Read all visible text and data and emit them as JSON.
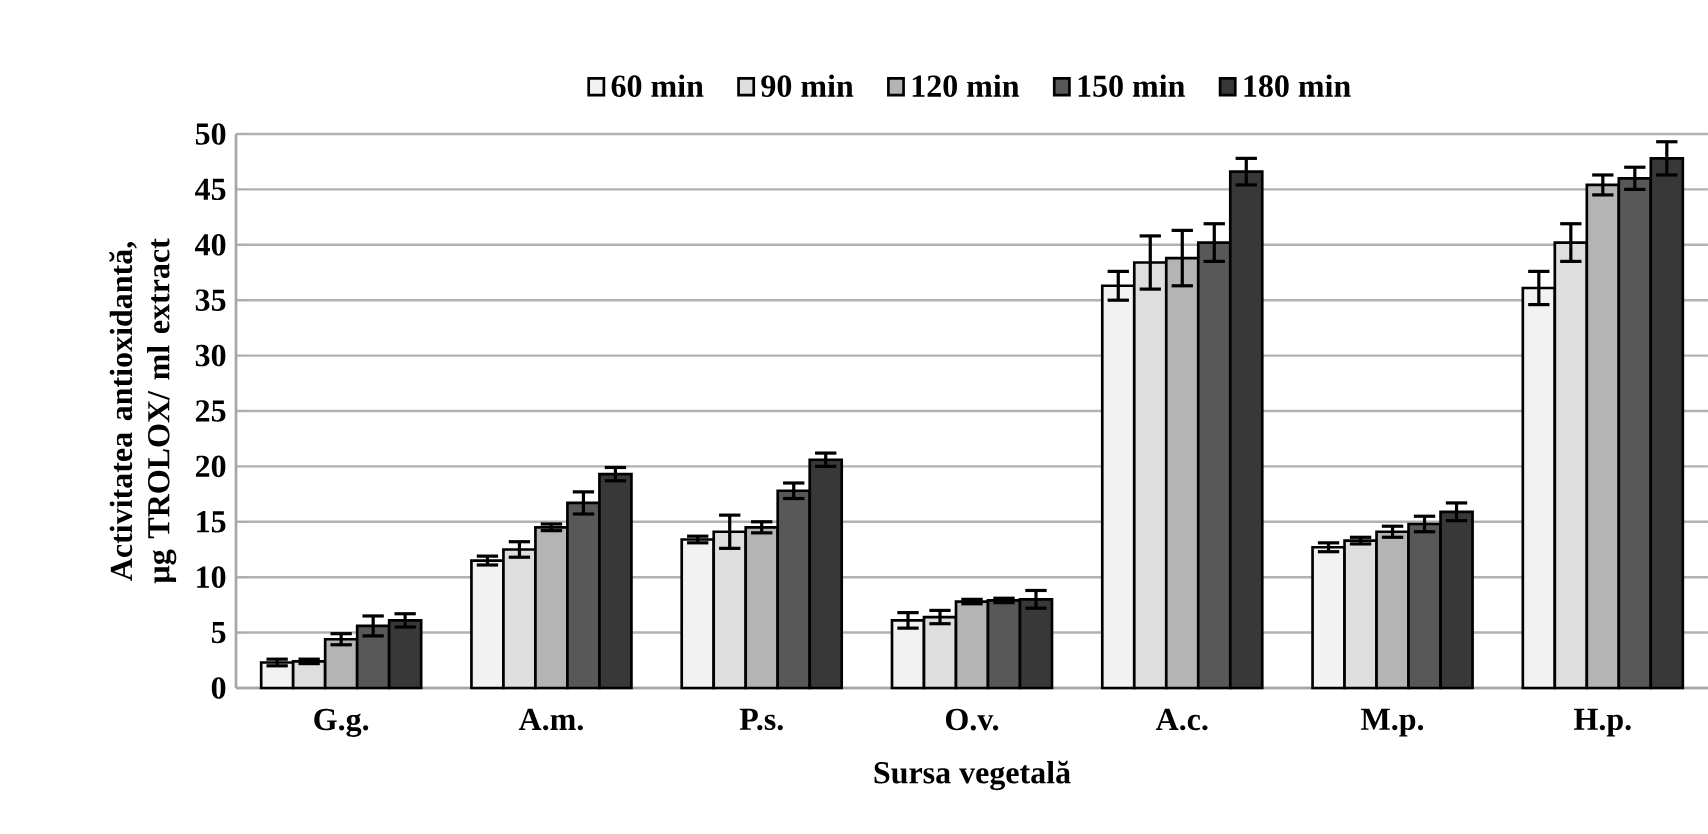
{
  "chart_data": {
    "type": "bar",
    "xlabel": "Sursa vegetală",
    "ylabel": "Activitatea antioxidantă, µg TROLOX/ ml extract",
    "categories": [
      "G.g.",
      "A.m.",
      "P.s.",
      "O.v.",
      "A.c.",
      "M.p.",
      "H.p."
    ],
    "series": [
      {
        "name": "60 min",
        "color": "#f2f2f2",
        "values": [
          2.3,
          11.5,
          13.4,
          6.1,
          36.3,
          12.7,
          36.1
        ],
        "errors": [
          0.3,
          0.4,
          0.3,
          0.7,
          1.3,
          0.4,
          1.5
        ]
      },
      {
        "name": "90 min",
        "color": "#dedede",
        "values": [
          2.4,
          12.5,
          14.1,
          6.4,
          38.4,
          13.3,
          40.2
        ],
        "errors": [
          0.2,
          0.7,
          1.5,
          0.6,
          2.4,
          0.3,
          1.7
        ]
      },
      {
        "name": "120 min",
        "color": "#b4b4b4",
        "values": [
          4.4,
          14.5,
          14.5,
          7.8,
          38.8,
          14.1,
          45.4
        ],
        "errors": [
          0.5,
          0.3,
          0.5,
          0.2,
          2.5,
          0.5,
          0.9
        ]
      },
      {
        "name": "150 min",
        "color": "#585858",
        "values": [
          5.6,
          16.7,
          17.8,
          7.9,
          40.2,
          14.8,
          46.0
        ],
        "errors": [
          0.9,
          1.0,
          0.7,
          0.2,
          1.7,
          0.7,
          1.0
        ]
      },
      {
        "name": "180 min",
        "color": "#383838",
        "values": [
          6.1,
          19.3,
          20.6,
          8.0,
          46.6,
          15.9,
          47.8
        ],
        "errors": [
          0.6,
          0.6,
          0.6,
          0.8,
          1.2,
          0.8,
          1.5
        ]
      }
    ],
    "ylim": [
      0,
      50
    ],
    "yticks": [
      0,
      5,
      10,
      15,
      20,
      25,
      30,
      35,
      40,
      45,
      50
    ],
    "grid": "y",
    "legend": "top"
  }
}
